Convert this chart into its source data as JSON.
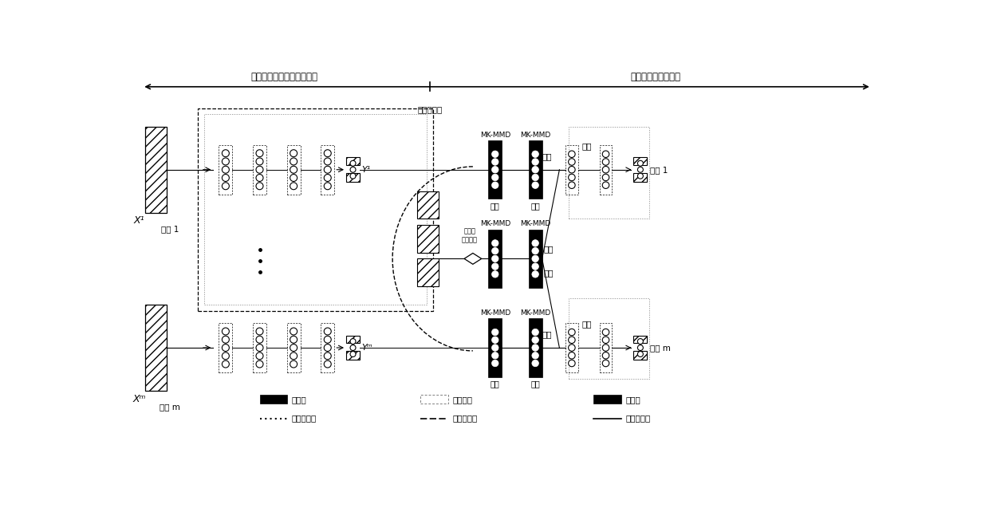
{
  "phase1_label": "第一阶段：训练特征检测器",
  "phase2_label": "第二阶段：多域融合",
  "region1_label": "地区 1",
  "regionm_label": "地区 m",
  "X1_label": "X¹",
  "Xm_label": "Xᵐ",
  "Y1_label": "Y¹",
  "Ym_label": "Yᵐ",
  "freeze_label": "冻结",
  "learn_label": "学习",
  "mk_mmd_label": "MK-MMD",
  "multi_region_label": "多地区数据",
  "cross_domain_label": "跨地域\n数据控制",
  "legend_freeze_layer": "冻结层",
  "legend_copy_freeze": "复制和冻结",
  "legend_specific_layer": "特定域层",
  "legend_cond_data": "条件数据流",
  "legend_output_layer": "输出层",
  "legend_normal_data": "正常数据流",
  "bg_color": "#ffffff"
}
